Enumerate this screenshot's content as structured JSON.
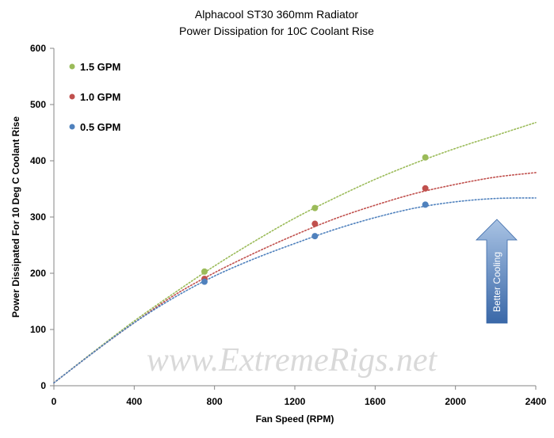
{
  "chart_data": {
    "type": "scatter",
    "title": "Alphacool  ST30 360mm Radiator",
    "subtitle": "Power Dissipation  for 10C Coolant  Rise",
    "xlabel": "Fan Speed (RPM)",
    "ylabel": "Power Dissipated For 10 Deg C Coolant Rise",
    "xlim": [
      0,
      2400
    ],
    "ylim": [
      0,
      600
    ],
    "x_ticks": [
      "0",
      "400",
      "800",
      "1200",
      "1600",
      "2000",
      "2400"
    ],
    "y_ticks": [
      "0",
      "100",
      "200",
      "300",
      "400",
      "500",
      "600"
    ],
    "grid": false,
    "legend_position": "top-left",
    "trendline": "dotted polynomial",
    "series": [
      {
        "name": "1.5 GPM",
        "color": "#9bbb59",
        "x": [
          750,
          1300,
          1850
        ],
        "y": [
          203,
          316,
          406
        ],
        "trend": [
          [
            0,
            5
          ],
          [
            200,
            61
          ],
          [
            400,
            115
          ],
          [
            600,
            165
          ],
          [
            800,
            213
          ],
          [
            1000,
            257
          ],
          [
            1200,
            298
          ],
          [
            1400,
            334
          ],
          [
            1600,
            367
          ],
          [
            1800,
            396
          ],
          [
            2000,
            422
          ],
          [
            2200,
            445
          ],
          [
            2400,
            468
          ]
        ]
      },
      {
        "name": "1.0 GPM",
        "color": "#c0504d",
        "x": [
          750,
          1300,
          1850
        ],
        "y": [
          190,
          288,
          351
        ],
        "trend": [
          [
            0,
            5
          ],
          [
            200,
            60
          ],
          [
            400,
            112
          ],
          [
            600,
            161
          ],
          [
            800,
            201
          ],
          [
            1000,
            236
          ],
          [
            1200,
            268
          ],
          [
            1400,
            297
          ],
          [
            1600,
            321
          ],
          [
            1800,
            342
          ],
          [
            2000,
            358
          ],
          [
            2200,
            371
          ],
          [
            2400,
            379
          ]
        ]
      },
      {
        "name": "0.5 GPM",
        "color": "#4f81bd",
        "x": [
          750,
          1300,
          1850
        ],
        "y": [
          185,
          266,
          322
        ],
        "trend": [
          [
            0,
            5
          ],
          [
            200,
            60
          ],
          [
            400,
            112
          ],
          [
            600,
            157
          ],
          [
            800,
            195
          ],
          [
            1000,
            226
          ],
          [
            1200,
            253
          ],
          [
            1400,
            278
          ],
          [
            1600,
            299
          ],
          [
            1800,
            316
          ],
          [
            2000,
            327
          ],
          [
            2200,
            333
          ],
          [
            2400,
            334
          ]
        ]
      }
    ],
    "annotation": {
      "text": "Better Cooling",
      "arrow_direction": "up",
      "color": "#4f81bd"
    },
    "watermark": "www.ExtremeRigs.net"
  }
}
